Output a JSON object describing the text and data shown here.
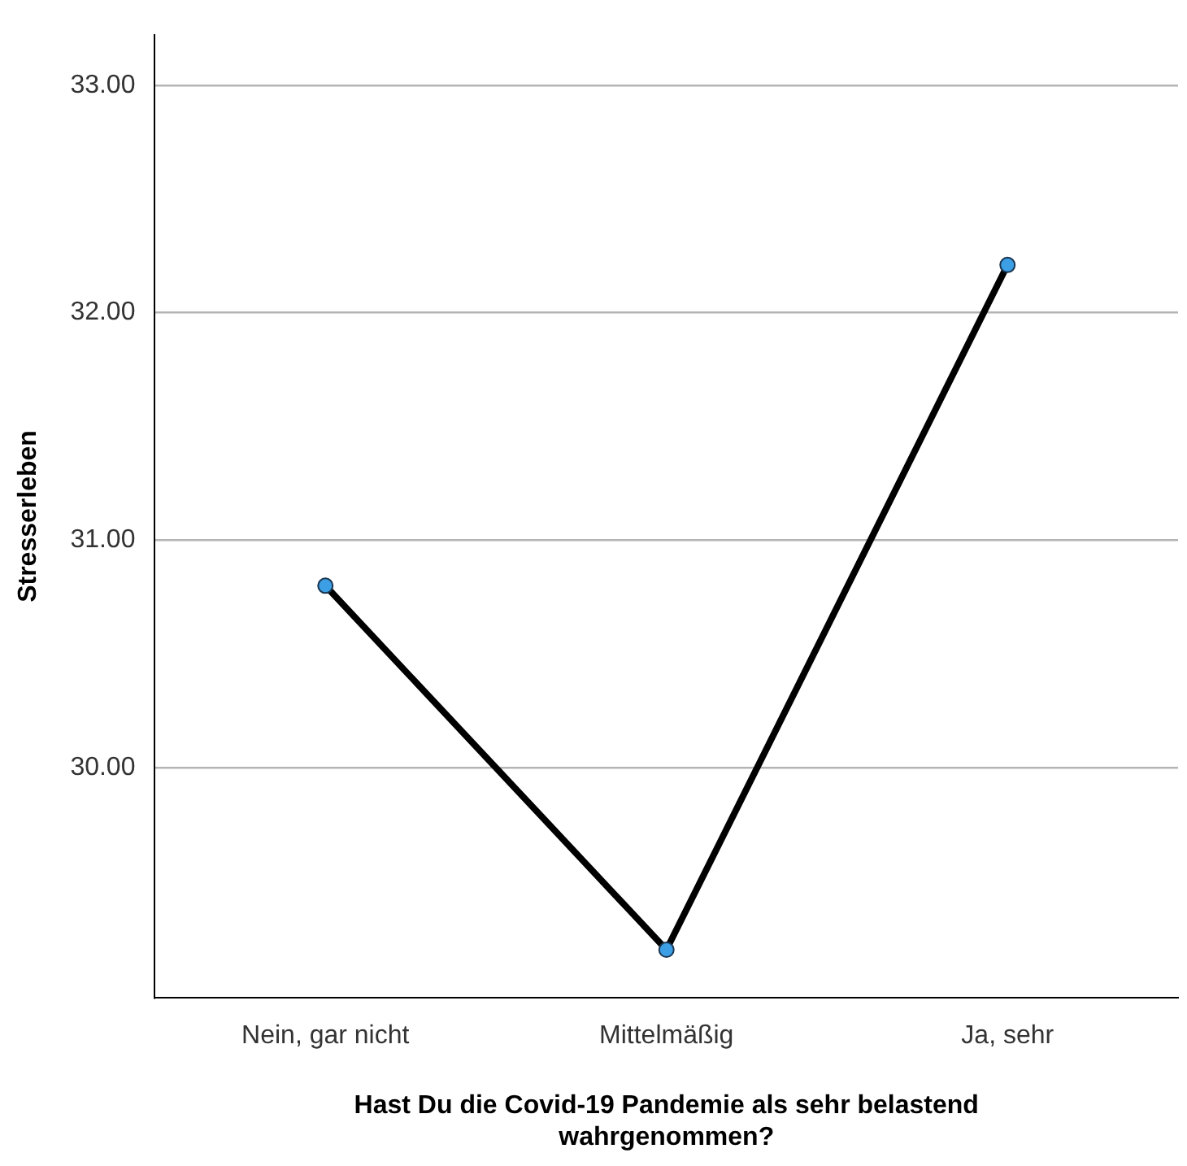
{
  "chart_data": {
    "type": "line",
    "xlabel": "Hast Du die Covid-19 Pandemie als sehr belastend wahrgenommen?",
    "ylabel": "Stresserleben",
    "categories": [
      "Nein, gar nicht",
      "Mittelmäßig",
      "Ja, sehr"
    ],
    "series": [
      {
        "color": "#000000",
        "colors": [
          "#3c9fe6",
          "#3c9fe6",
          "#3c9fe6"
        ],
        "values": [
          30.8,
          29.2,
          32.21
        ]
      }
    ],
    "ylim": [
      28.99,
      33.22
    ],
    "yticks": [
      {
        "value": 30,
        "label": "30.00"
      },
      {
        "value": 31,
        "label": "31.00"
      },
      {
        "value": 32,
        "label": "32.00"
      },
      {
        "value": 33,
        "label": "33.00"
      }
    ],
    "grid": "y",
    "marker": "circle",
    "line_style": "solid",
    "legend": false
  }
}
